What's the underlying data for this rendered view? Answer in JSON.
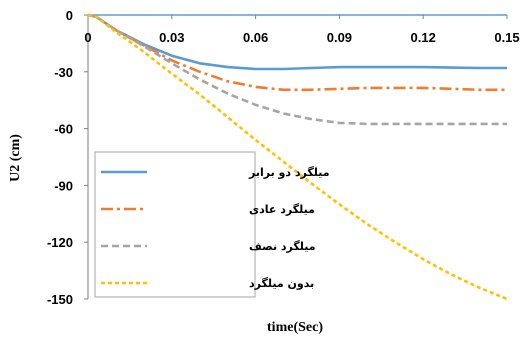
{
  "chart_data": {
    "type": "line",
    "xlabel": "time(Sec)",
    "ylabel": "U2 (cm)",
    "xlim": [
      0,
      0.15
    ],
    "ylim": [
      -150,
      0
    ],
    "x_ticks": [
      "0",
      "0.03",
      "0.06",
      "0.09",
      "0.12",
      "0.15"
    ],
    "y_ticks": [
      "0",
      "-30",
      "-60",
      "-90",
      "-120",
      "-150"
    ],
    "grid": false,
    "legend_position": "bottom-left",
    "series": [
      {
        "name": "میلگرد دو برابر",
        "color": "#5b9bd5",
        "dash": "solid",
        "x": [
          0,
          0.003,
          0.01,
          0.02,
          0.03,
          0.04,
          0.05,
          0.06,
          0.07,
          0.08,
          0.09,
          0.1,
          0.11,
          0.12,
          0.13,
          0.14,
          0.15
        ],
        "y": [
          0,
          -1,
          -8,
          -15.5,
          -21.5,
          -25.5,
          -27.5,
          -28.5,
          -28.5,
          -28,
          -27.5,
          -27.5,
          -27.5,
          -27.5,
          -27.8,
          -28,
          -28
        ]
      },
      {
        "name": "میلگرد عادی",
        "color": "#ed7d31",
        "dash": "dashdot",
        "x": [
          0,
          0.003,
          0.01,
          0.02,
          0.03,
          0.04,
          0.05,
          0.06,
          0.07,
          0.08,
          0.09,
          0.1,
          0.11,
          0.12,
          0.13,
          0.14,
          0.15
        ],
        "y": [
          0,
          -1,
          -8,
          -16,
          -24,
          -30,
          -35,
          -38,
          -39.5,
          -39.5,
          -39,
          -38.5,
          -38.5,
          -38.5,
          -39,
          -39.5,
          -39.5
        ]
      },
      {
        "name": "میلگرد نصف",
        "color": "#a5a5a5",
        "dash": "dash",
        "x": [
          0,
          0.003,
          0.01,
          0.02,
          0.03,
          0.04,
          0.05,
          0.06,
          0.07,
          0.08,
          0.09,
          0.1,
          0.11,
          0.12,
          0.13,
          0.14,
          0.15
        ],
        "y": [
          0,
          -1,
          -8,
          -16.5,
          -25.5,
          -34,
          -41.5,
          -47.5,
          -52,
          -55,
          -57,
          -57.5,
          -57.5,
          -57.5,
          -57.5,
          -57.5,
          -57.5
        ]
      },
      {
        "name": "بدون میلگرد",
        "color": "#ffc000",
        "dash": "shortdash",
        "x": [
          0,
          0.003,
          0.01,
          0.02,
          0.03,
          0.04,
          0.05,
          0.06,
          0.07,
          0.08,
          0.09,
          0.1,
          0.11,
          0.12,
          0.13,
          0.14,
          0.15
        ],
        "y": [
          0,
          -1,
          -9,
          -19.5,
          -31,
          -42,
          -54,
          -66,
          -77.5,
          -89,
          -100,
          -110.5,
          -120,
          -129,
          -137,
          -144,
          -150
        ]
      }
    ]
  }
}
